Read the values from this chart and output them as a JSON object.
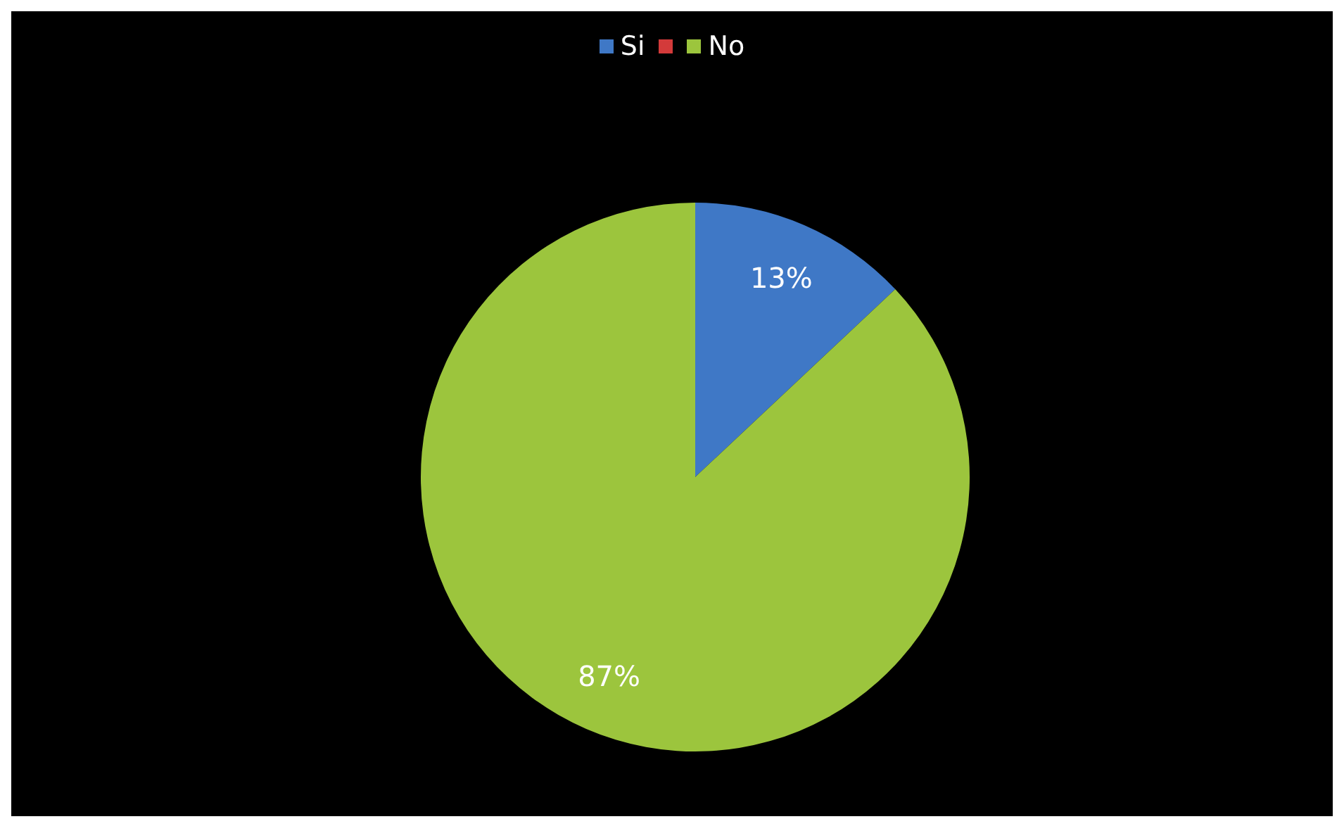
{
  "chart_data": {
    "type": "pie",
    "categories": [
      "Si",
      null,
      "No"
    ],
    "values": [
      13,
      0,
      87
    ],
    "colors": [
      "#3f78c6",
      "#d33a3a",
      "#9cc53d"
    ],
    "value_labels": [
      "13%",
      null,
      "87%"
    ],
    "legend": "top"
  }
}
